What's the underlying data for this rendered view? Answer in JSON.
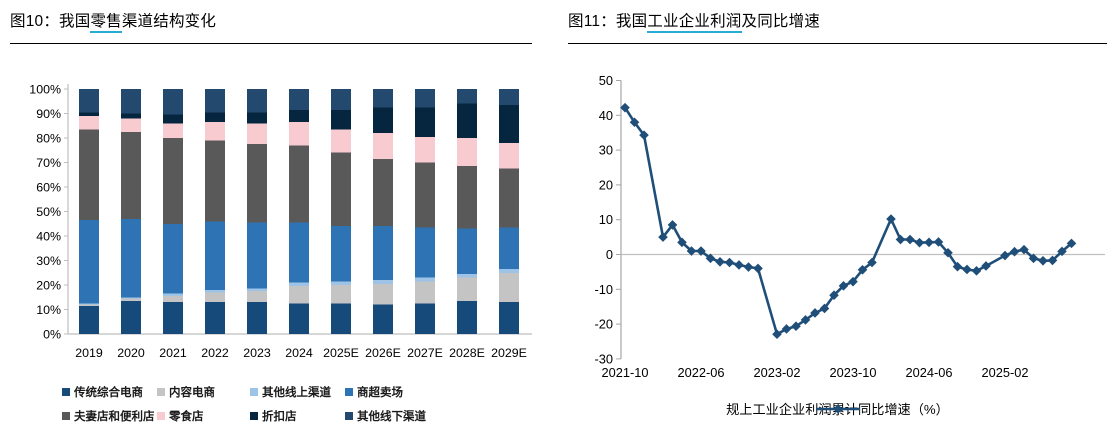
{
  "colors": {
    "underline_accent": "#29ABD2",
    "axis_gray": "#BFBFBF",
    "right_axis_gray": "#A6A6A6",
    "zero_line_gray": "#C0C0C0",
    "text_black": "#000000"
  },
  "figure_left": {
    "title_prefix": "图10：我国",
    "title_underlined": "零售",
    "title_suffix": "渠道结构变化",
    "chart_data": {
      "type": "bar",
      "stacked": true,
      "unit": "percent",
      "categories": [
        "2019",
        "2020",
        "2021",
        "2022",
        "2023",
        "2024",
        "2025E",
        "2026E",
        "2027E",
        "2028E",
        "2029E"
      ],
      "series": [
        {
          "name": "传统综合电商",
          "color": "#164A7B",
          "values": [
            11.5,
            13.5,
            13,
            13,
            13,
            12.5,
            12.5,
            12,
            12.5,
            13.5,
            13
          ]
        },
        {
          "name": "内容电商",
          "color": "#C4C4C4",
          "values": [
            0.5,
            1,
            2.5,
            4,
            4.5,
            7,
            7.5,
            8.5,
            9,
            9.5,
            12
          ]
        },
        {
          "name": "其他线上渠道",
          "color": "#9DC3E6",
          "values": [
            0.5,
            0.5,
            1,
            1,
            1,
            1.5,
            1.5,
            1.5,
            1.5,
            1.5,
            1.5
          ]
        },
        {
          "name": "商超卖场",
          "color": "#2E74B5",
          "values": [
            34,
            32,
            28.5,
            28,
            27,
            24.5,
            22.5,
            22,
            20.5,
            18.5,
            17
          ]
        },
        {
          "name": "夫妻店和便利店",
          "color": "#595959",
          "values": [
            37,
            35.5,
            35,
            33,
            32,
            31.5,
            30,
            27.5,
            26.5,
            25.5,
            24
          ]
        },
        {
          "name": "零食店",
          "color": "#F8CBD1",
          "values": [
            5.5,
            5.5,
            6,
            7.5,
            8.5,
            9.5,
            9.5,
            10.5,
            10.5,
            11.5,
            10.5
          ]
        },
        {
          "name": "折扣店",
          "color": "#06263F",
          "values": [
            1.5,
            2,
            3.5,
            4,
            4.5,
            5,
            8,
            10.5,
            12,
            14,
            15.5
          ]
        },
        {
          "name": "其他线下渠道",
          "color": "#234A6E",
          "values": [
            9.5,
            10,
            10.5,
            9.5,
            9.5,
            8.5,
            8.5,
            7.5,
            7.5,
            6,
            6.5
          ]
        }
      ],
      "y_ticks": [
        "0%",
        "10%",
        "20%",
        "30%",
        "40%",
        "50%",
        "60%",
        "70%",
        "80%",
        "90%",
        "100%"
      ],
      "ylim": [
        0,
        100
      ],
      "grid": false,
      "legend_position": "bottom"
    }
  },
  "figure_right": {
    "title_prefix": "图11：我国",
    "title_underlined": "工业企业利润",
    "title_suffix": "及同比增速",
    "legend_label": "规上工业企业利润累计同比增速（%）",
    "line_color": "#1F4E79",
    "chart_data": {
      "type": "line",
      "marker": "diamond",
      "x": [
        "2021-10",
        "2021-11",
        "2021-12",
        "2022-02",
        "2022-03",
        "2022-04",
        "2022-05",
        "2022-06",
        "2022-07",
        "2022-08",
        "2022-09",
        "2022-10",
        "2022-11",
        "2022-12",
        "2023-02",
        "2023-03",
        "2023-04",
        "2023-05",
        "2023-06",
        "2023-07",
        "2023-08",
        "2023-09",
        "2023-10",
        "2023-11",
        "2023-12",
        "2024-02",
        "2024-03",
        "2024-04",
        "2024-05",
        "2024-06",
        "2024-07",
        "2024-08",
        "2024-09",
        "2024-10",
        "2024-11",
        "2024-12",
        "2025-02",
        "2025-03",
        "2025-04",
        "2025-05",
        "2025-06",
        "2025-07",
        "2025-08",
        "2025-09"
      ],
      "y": [
        42.2,
        38.0,
        34.3,
        5.0,
        8.5,
        3.5,
        1.0,
        1.0,
        -1.1,
        -2.1,
        -2.3,
        -3.0,
        -3.6,
        -4.0,
        -22.9,
        -21.4,
        -20.6,
        -18.8,
        -16.8,
        -15.5,
        -11.7,
        -9.0,
        -7.8,
        -4.4,
        -2.3,
        10.2,
        4.3,
        4.3,
        3.4,
        3.5,
        3.6,
        0.5,
        -3.5,
        -4.3,
        -4.7,
        -3.3,
        -0.3,
        0.8,
        1.4,
        -1.1,
        -1.8,
        -1.7,
        0.9,
        3.2
      ],
      "x_tick_labels": [
        "2021-10",
        "2022-06",
        "2023-02",
        "2023-10",
        "2024-06",
        "2025-02"
      ],
      "y_ticks": [
        50,
        40,
        30,
        20,
        10,
        0,
        -10,
        -20,
        -30
      ],
      "ylim": [
        -30,
        50
      ],
      "zero_line": true,
      "grid": false,
      "legend_position": "bottom"
    }
  }
}
